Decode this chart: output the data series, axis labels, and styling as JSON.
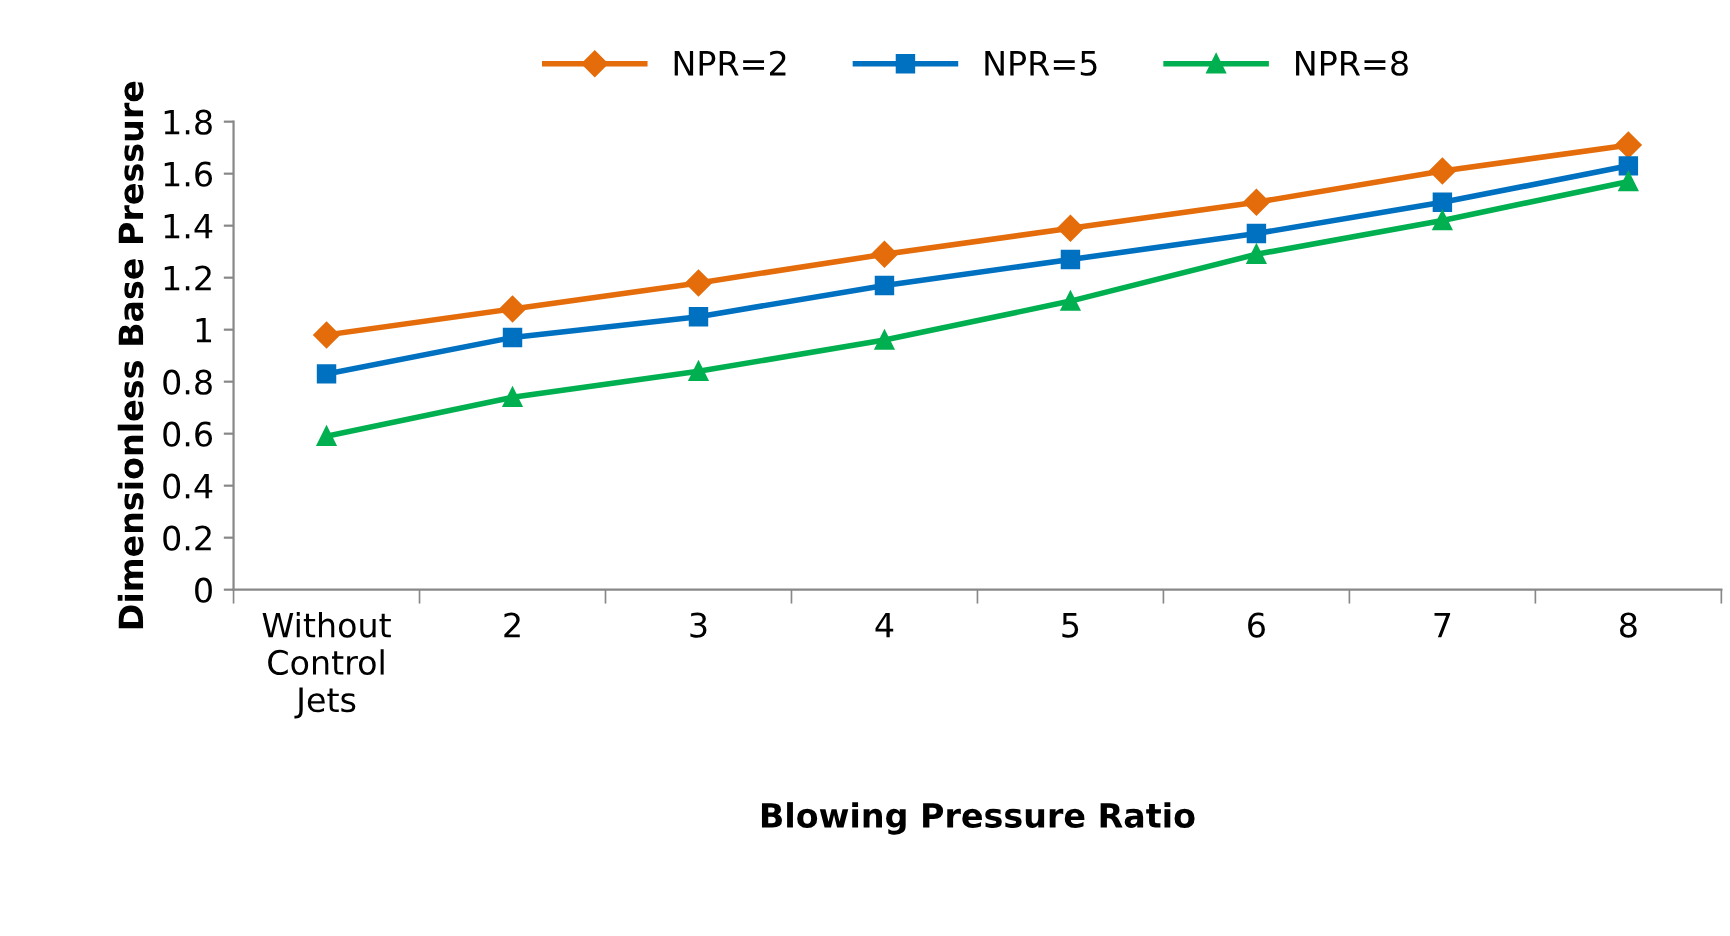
{
  "chart_data": {
    "type": "line",
    "xlabel": "Blowing Pressure Ratio",
    "ylabel": "Dimensionless Base Pressure",
    "categories": [
      "Without\nControl\nJets",
      "2",
      "3",
      "4",
      "5",
      "6",
      "7",
      "8"
    ],
    "series": [
      {
        "name": "NPR=2",
        "color": "#e46c0a",
        "marker": "diamond",
        "values": [
          0.98,
          1.08,
          1.18,
          1.29,
          1.39,
          1.49,
          1.61,
          1.71
        ]
      },
      {
        "name": "NPR=5",
        "color": "#0070c0",
        "marker": "square",
        "values": [
          0.83,
          0.97,
          1.05,
          1.17,
          1.27,
          1.37,
          1.49,
          1.63
        ]
      },
      {
        "name": "NPR=8",
        "color": "#00b050",
        "marker": "triangle",
        "values": [
          0.59,
          0.74,
          0.84,
          0.96,
          1.11,
          1.29,
          1.42,
          1.57
        ]
      }
    ],
    "ylim": [
      0,
      1.8
    ],
    "yticks": [
      0,
      {
        "value": 0.2,
        "label": "0.2"
      },
      {
        "value": 0.4,
        "label": "0.4"
      },
      {
        "value": 0.6,
        "label": "0.6"
      },
      {
        "value": 0.8,
        "label": "0.8"
      },
      1,
      {
        "value": 1.2,
        "label": "1.2"
      },
      {
        "value": 1.4,
        "label": "1.4"
      },
      {
        "value": 1.6,
        "label": "1.6"
      },
      {
        "value": 1.8,
        "label": "1.8"
      }
    ],
    "grid": false,
    "legend": "top",
    "line_style": "solid"
  }
}
